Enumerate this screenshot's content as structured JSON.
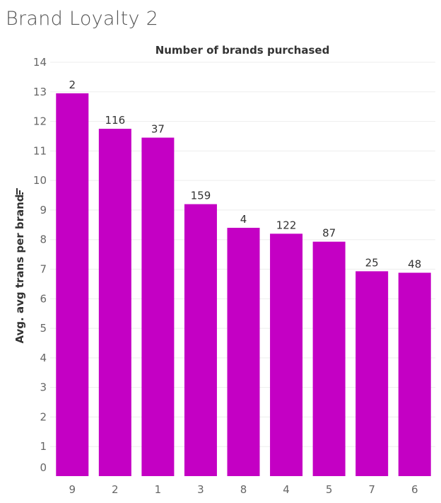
{
  "dashboard": {
    "title": "Brand Loyalty 2"
  },
  "chart_data": {
    "type": "bar",
    "title": "Number of brands purchased",
    "xlabel": "",
    "ylabel": "Avg. avg trans per brand",
    "sort_icon": "sort-descending-icon",
    "categories": [
      "9",
      "2",
      "1",
      "3",
      "8",
      "4",
      "5",
      "7",
      "6"
    ],
    "values": [
      12.95,
      11.75,
      11.45,
      9.2,
      8.4,
      8.2,
      7.93,
      6.93,
      6.88
    ],
    "data_labels": [
      "2",
      "116",
      "37",
      "159",
      "4",
      "122",
      "87",
      "25",
      "48"
    ],
    "ylim": [
      0,
      14
    ],
    "yticks": [
      0,
      1,
      2,
      3,
      4,
      5,
      6,
      7,
      8,
      9,
      10,
      11,
      12,
      13,
      14
    ],
    "grid": true,
    "bar_color": "#c400c4"
  }
}
